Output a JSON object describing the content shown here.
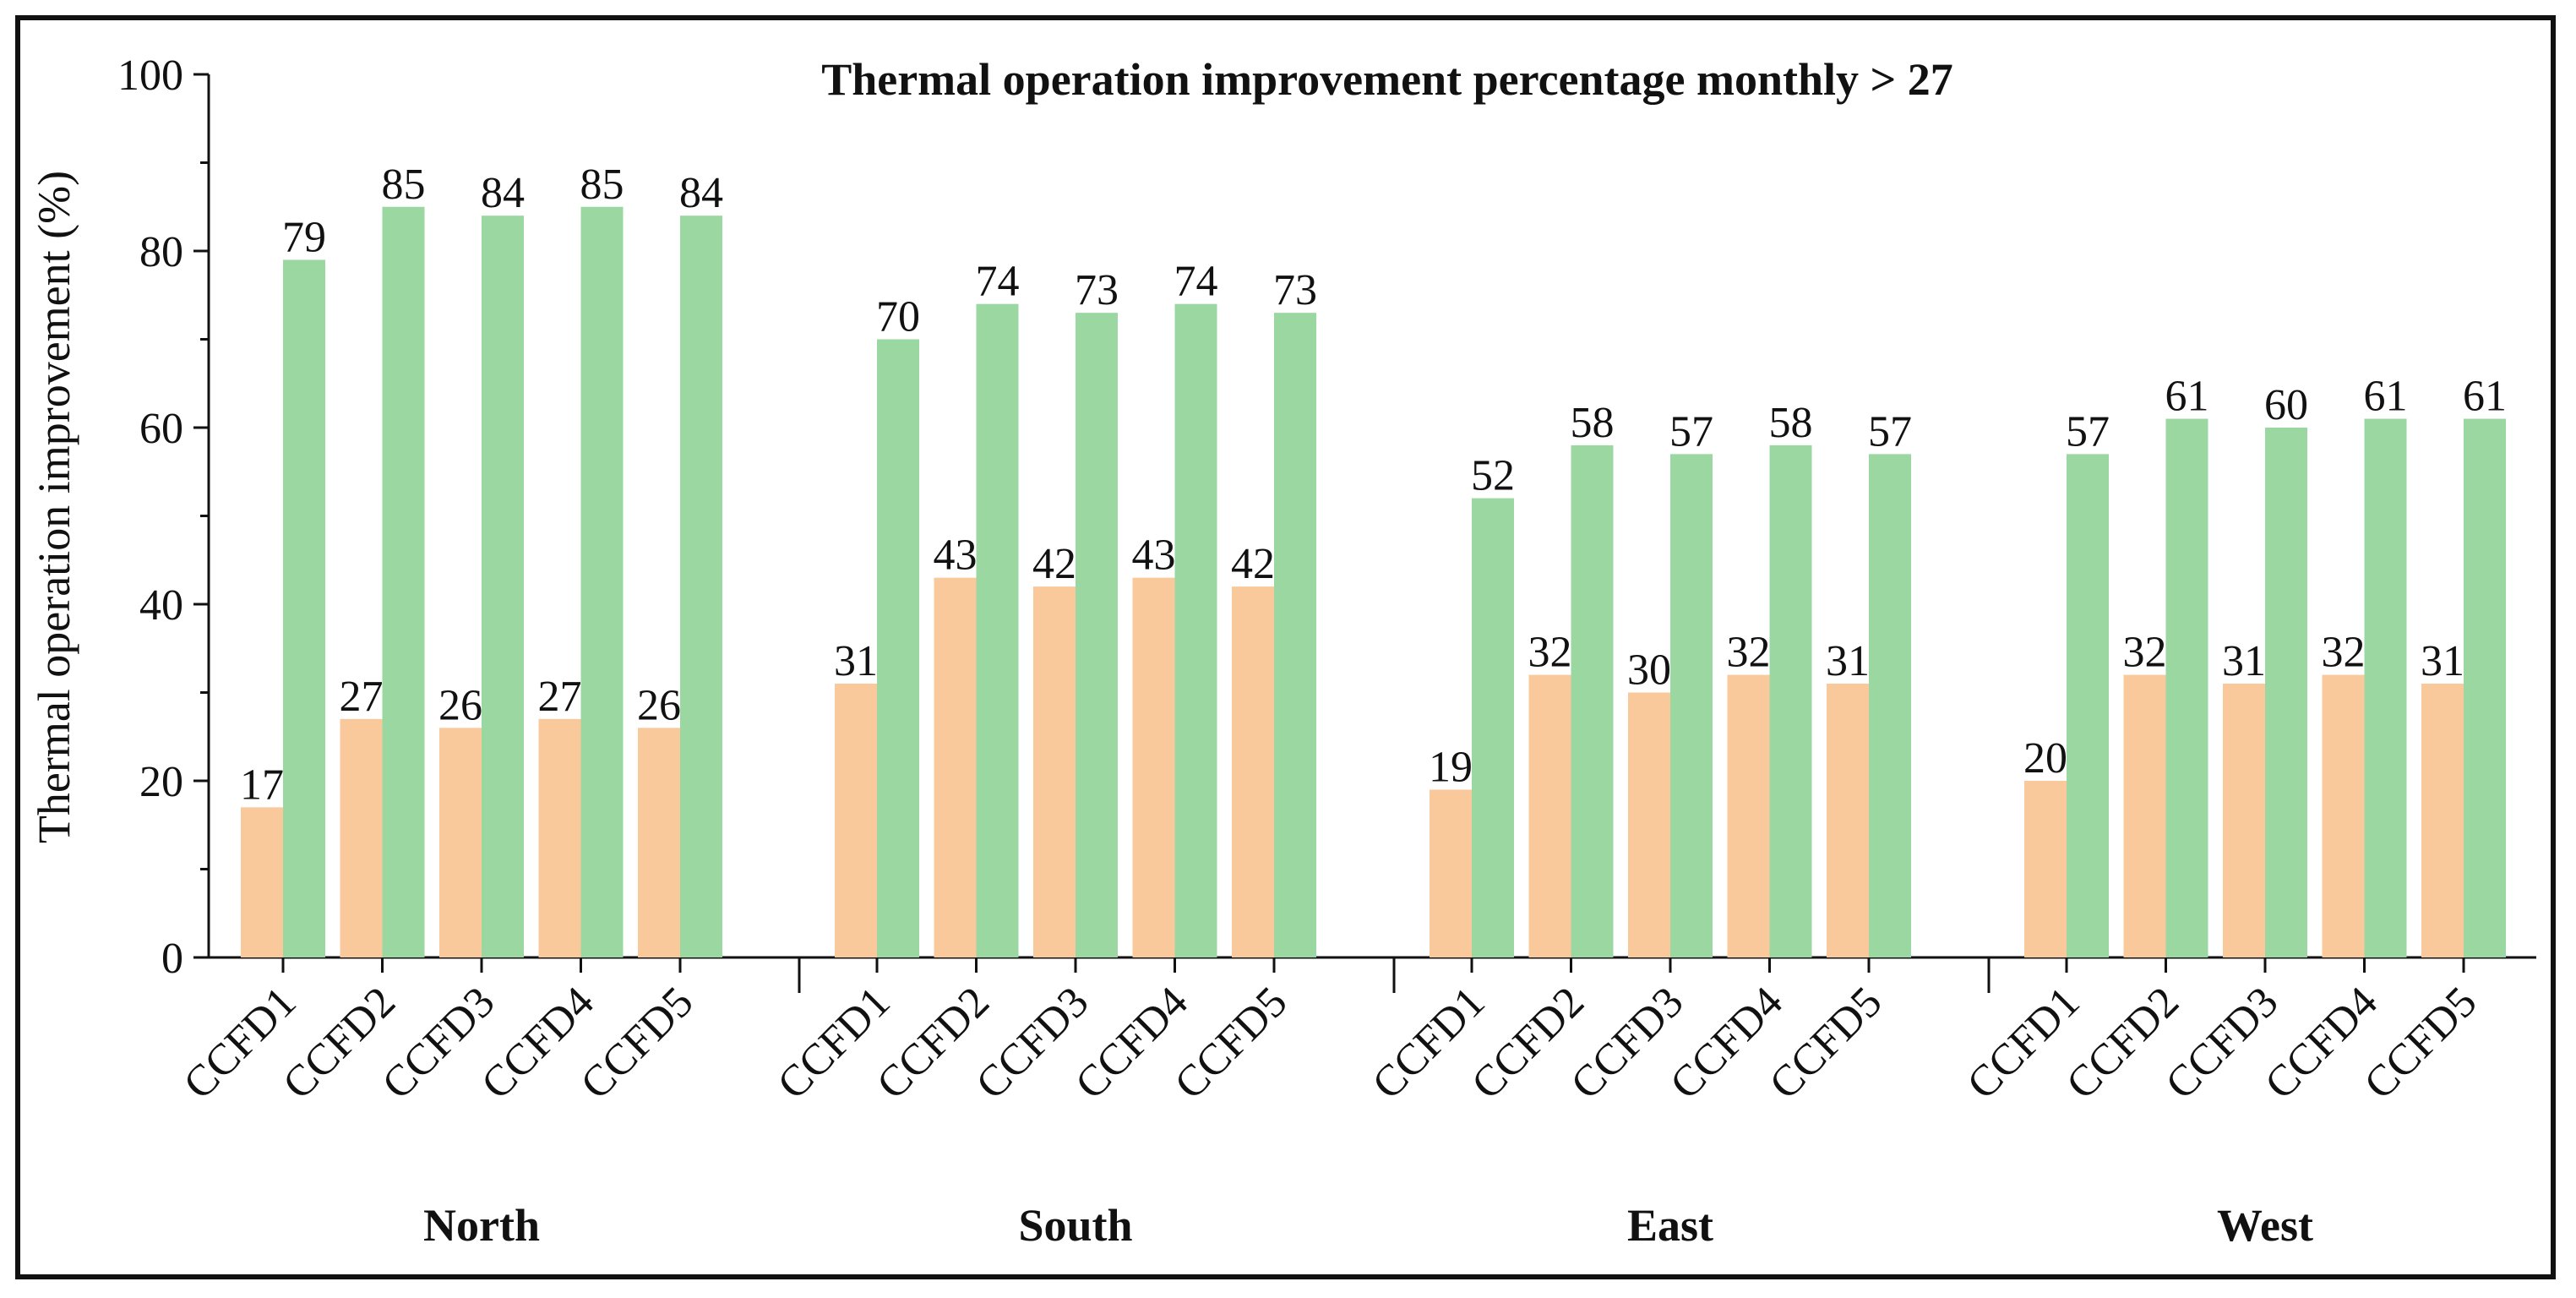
{
  "chart_data": {
    "type": "bar",
    "title": "Thermal operation improvement percentage monthly > 27",
    "ylabel": "Thermal operation improvement (%)",
    "xlabel": "",
    "ylim": [
      0,
      100
    ],
    "yticks": [
      0,
      20,
      40,
      60,
      80,
      100
    ],
    "grid": false,
    "legend": "none",
    "colors": {
      "series1": "#f9c89b",
      "series2": "#9bd7a0",
      "axis": "#111111"
    },
    "groups": [
      {
        "name": "North",
        "categories": [
          "CCFD1",
          "CCFD2",
          "CCFD3",
          "CCFD4",
          "CCFD5"
        ],
        "series1": [
          17,
          27,
          26,
          27,
          26
        ],
        "series2": [
          79,
          85,
          84,
          85,
          84
        ]
      },
      {
        "name": "South",
        "categories": [
          "CCFD1",
          "CCFD2",
          "CCFD3",
          "CCFD4",
          "CCFD5"
        ],
        "series1": [
          31,
          43,
          42,
          43,
          42
        ],
        "series2": [
          70,
          74,
          73,
          74,
          73
        ]
      },
      {
        "name": "East",
        "categories": [
          "CCFD1",
          "CCFD2",
          "CCFD3",
          "CCFD4",
          "CCFD5"
        ],
        "series1": [
          19,
          32,
          30,
          32,
          31
        ],
        "series2": [
          52,
          58,
          57,
          58,
          57
        ]
      },
      {
        "name": "West",
        "categories": [
          "CCFD1",
          "CCFD2",
          "CCFD3",
          "CCFD4",
          "CCFD5"
        ],
        "series1": [
          20,
          32,
          31,
          32,
          31
        ],
        "series2": [
          57,
          61,
          60,
          61,
          61
        ]
      }
    ]
  }
}
